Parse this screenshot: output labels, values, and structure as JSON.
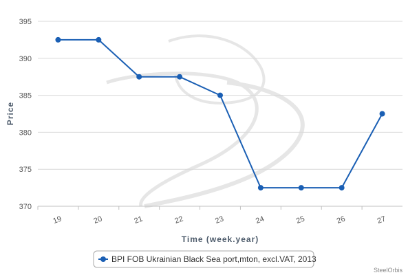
{
  "chart_data": {
    "type": "line",
    "categories": [
      "19",
      "20",
      "21",
      "22",
      "23",
      "24",
      "25",
      "26",
      "27"
    ],
    "series": [
      {
        "name": "BPI FOB Ukrainian Black Sea port,mton, excl.VAT, 2013",
        "values": [
          392.5,
          392.5,
          387.5,
          387.5,
          385,
          372.5,
          372.5,
          372.5,
          382.5
        ],
        "color": "#1a5fb4"
      }
    ],
    "title": "",
    "xlabel": "Time (week.year)",
    "ylabel": "Price",
    "ylim": [
      370,
      395
    ],
    "yticks": [
      370,
      375,
      380,
      385,
      390,
      395
    ],
    "grid": true,
    "legend_position": "bottom-center",
    "credit": "SteelOrbis"
  }
}
